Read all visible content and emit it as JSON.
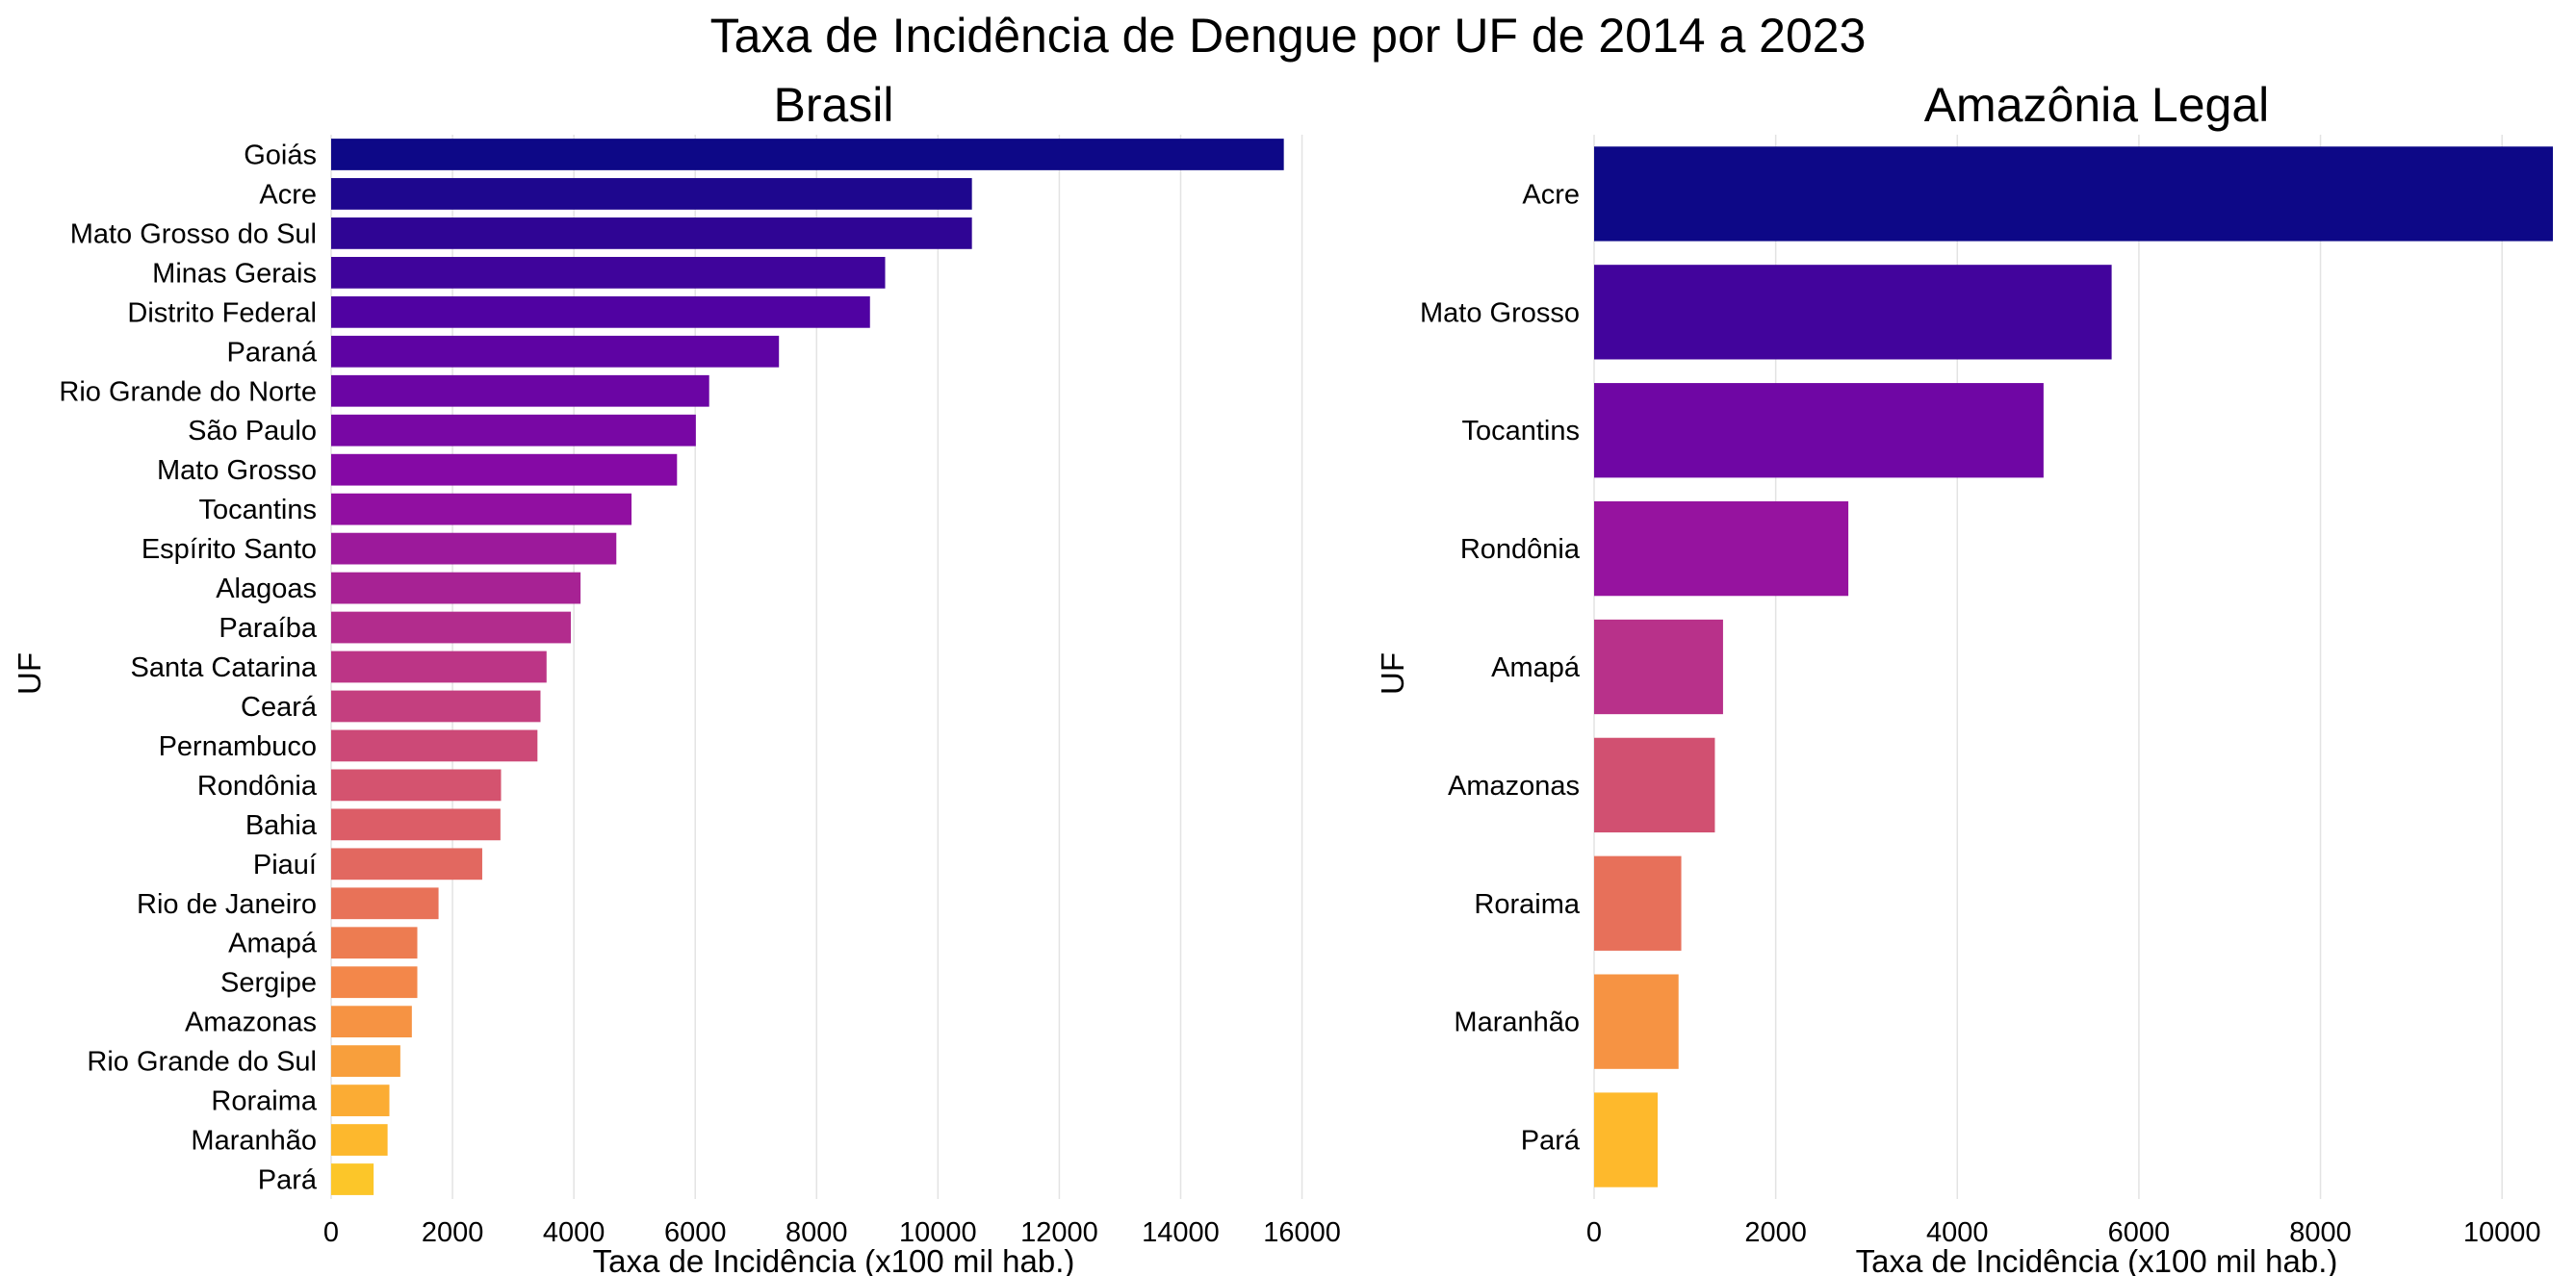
{
  "title": "Taxa de Incidência de Dengue por UF de 2014 a 2023",
  "chart_data": [
    {
      "type": "bar",
      "orientation": "horizontal",
      "title": "Brasil",
      "xlabel": "Taxa de Incidência (x100 mil hab.)",
      "ylabel": "UF",
      "xlim": [
        0,
        16800
      ],
      "xticks": [
        0,
        2000,
        4000,
        6000,
        8000,
        10000,
        12000,
        14000,
        16000
      ],
      "grid": "vertical",
      "colormap": "plasma",
      "categories": [
        "Goiás",
        "Acre",
        "Mato Grosso do Sul",
        "Minas Gerais",
        "Distrito Federal",
        "Paraná",
        "Rio Grande do Norte",
        "São Paulo",
        "Mato Grosso",
        "Tocantins",
        "Espírito Santo",
        "Alagoas",
        "Paraíba",
        "Santa Catarina",
        "Ceará",
        "Pernambuco",
        "Rondônia",
        "Bahia",
        "Piauí",
        "Rio de Janeiro",
        "Amapá",
        "Sergipe",
        "Amazonas",
        "Rio Grande do Sul",
        "Roraima",
        "Maranhão",
        "Pará"
      ],
      "values": [
        15700,
        10560,
        10560,
        9130,
        8880,
        7380,
        6230,
        6010,
        5700,
        4950,
        4700,
        4110,
        3950,
        3550,
        3450,
        3400,
        2800,
        2790,
        2490,
        1770,
        1420,
        1420,
        1330,
        1140,
        960,
        930,
        700
      ]
    },
    {
      "type": "bar",
      "orientation": "horizontal",
      "title": "Amazônia Legal",
      "xlabel": "Taxa de Incidência (x100 mil hab.)",
      "ylabel": "UF",
      "xlim": [
        0,
        10560
      ],
      "xticks": [
        0,
        2000,
        4000,
        6000,
        8000,
        10000
      ],
      "grid": "vertical",
      "colormap": "plasma",
      "categories": [
        "Acre",
        "Mato Grosso",
        "Tocantins",
        "Rondônia",
        "Amapá",
        "Amazonas",
        "Roraima",
        "Maranhão",
        "Pará"
      ],
      "values": [
        10560,
        5700,
        4950,
        2800,
        1420,
        1330,
        960,
        930,
        700
      ]
    }
  ]
}
